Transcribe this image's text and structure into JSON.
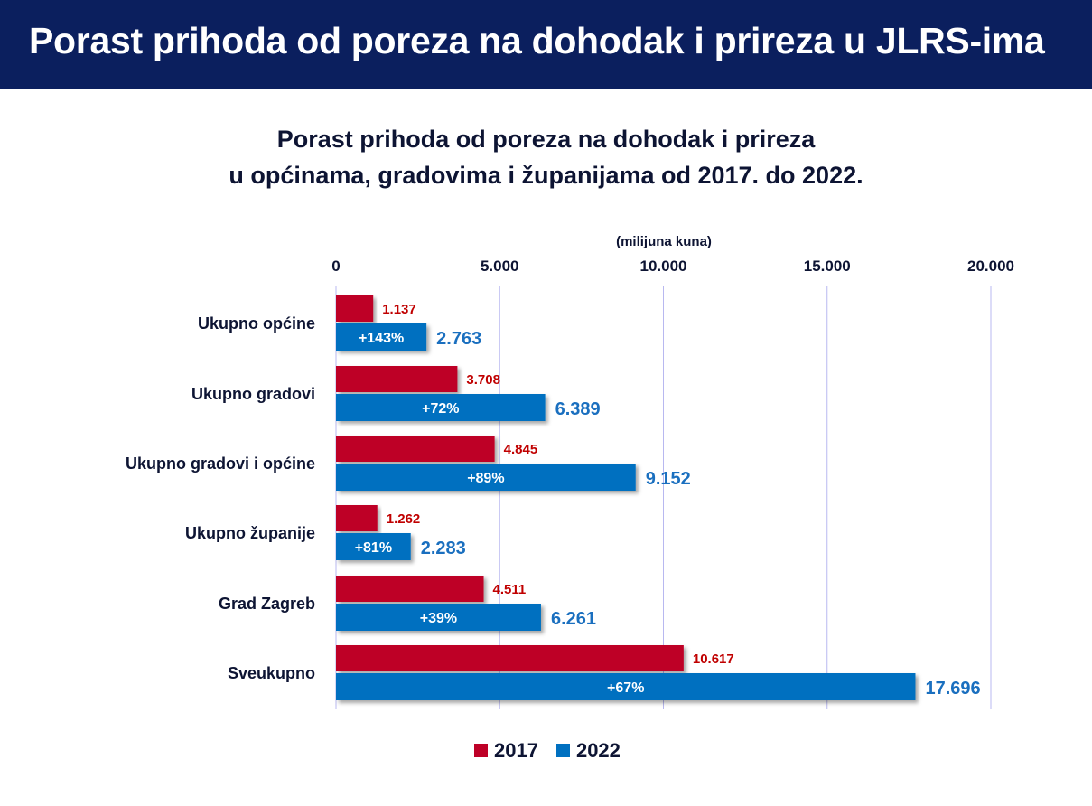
{
  "header": {
    "title": "Porast prihoda od poreza na dohodak i prireza u JLRS-ima"
  },
  "chart_data": {
    "type": "bar",
    "orientation": "horizontal",
    "title_line1": "Porast prihoda od poreza na dohodak i prireza",
    "title_line2": "u općinama, gradovima i županijama od 2017. do 2022.",
    "unit_label": "(milijuna kuna)",
    "xlim": [
      0,
      20000
    ],
    "ticks": [
      0,
      5000,
      10000,
      15000,
      20000
    ],
    "tick_labels": [
      "0",
      "5.000",
      "10.000",
      "15.000",
      "20.000"
    ],
    "grid": true,
    "legend_position": "bottom",
    "categories": [
      "Ukupno općine",
      "Ukupno gradovi",
      "Ukupno gradovi i općine",
      "Ukupno županije",
      "Grad Zagreb",
      "Sveukupno"
    ],
    "series": [
      {
        "name": "2017",
        "color": "#be0027",
        "values": [
          1137,
          3708,
          4845,
          1262,
          4511,
          10617
        ],
        "labels": [
          "1.137",
          "3.708",
          "4.845",
          "1.262",
          "4.511",
          "10.617"
        ]
      },
      {
        "name": "2022",
        "color": "#0070c0",
        "values": [
          2763,
          6389,
          9152,
          2283,
          6261,
          17696
        ],
        "labels": [
          "2.763",
          "6.389",
          "9.152",
          "2.283",
          "6.261",
          "17.696"
        ]
      }
    ],
    "growth_labels": [
      "+143%",
      "+72%",
      "+89%",
      "+81%",
      "+39%",
      "+67%"
    ]
  }
}
